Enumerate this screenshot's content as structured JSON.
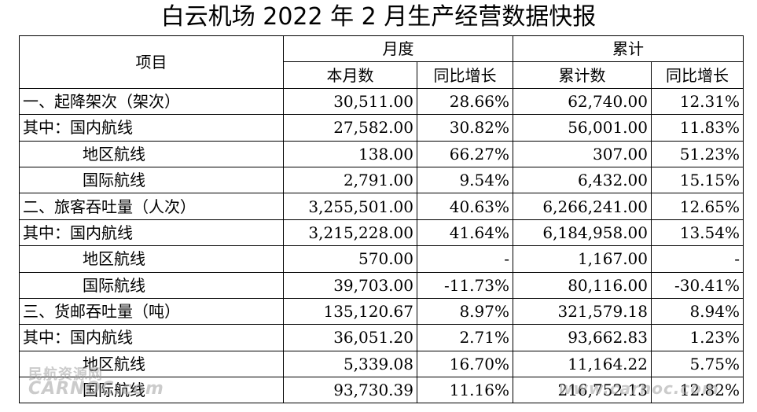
{
  "title": "白云机场 2022 年 2 月生产经营数据快报",
  "header": {
    "item": "项目",
    "monthly": "月度",
    "cumulative": "累计",
    "monthly_count": "本月数",
    "yoy": "同比增长",
    "cumulative_count": "累计数",
    "yoy_cum": "同比增长"
  },
  "rows": [
    {
      "label": "一、起降架次（架次）",
      "month": "30,511.00",
      "month_yoy": "28.66%",
      "cum": "62,740.00",
      "cum_yoy": "12.31%"
    },
    {
      "label": "其中：国内航线",
      "month": "27,582.00",
      "month_yoy": "30.82%",
      "cum": "56,001.00",
      "cum_yoy": "11.83%"
    },
    {
      "label": "地区航线",
      "month": "138.00",
      "month_yoy": "66.27%",
      "cum": "307.00",
      "cum_yoy": "51.23%"
    },
    {
      "label": "国际航线",
      "month": "2,791.00",
      "month_yoy": "9.54%",
      "cum": "6,432.00",
      "cum_yoy": "15.15%"
    },
    {
      "label": "二、旅客吞吐量（人次）",
      "month": "3,255,501.00",
      "month_yoy": "40.63%",
      "cum": "6,266,241.00",
      "cum_yoy": "12.65%"
    },
    {
      "label": "其中：国内航线",
      "month": "3,215,228.00",
      "month_yoy": "41.64%",
      "cum": "6,184,958.00",
      "cum_yoy": "13.54%"
    },
    {
      "label": "地区航线",
      "month": "570.00",
      "month_yoy": "-",
      "cum": "1,167.00",
      "cum_yoy": "-"
    },
    {
      "label": "国际航线",
      "month": "39,703.00",
      "month_yoy": "-11.73%",
      "cum": "80,116.00",
      "cum_yoy": "-30.41%"
    },
    {
      "label": "三、货邮吞吐量（吨）",
      "month": "135,120.67",
      "month_yoy": "8.97%",
      "cum": "321,579.18",
      "cum_yoy": "8.94%"
    },
    {
      "label": "其中：国内航线",
      "month": "36,051.20",
      "month_yoy": "2.71%",
      "cum": "93,662.83",
      "cum_yoy": "1.23%"
    },
    {
      "label": "地区航线",
      "month": "5,339.08",
      "month_yoy": "16.70%",
      "cum": "11,164.22",
      "cum_yoy": "5.75%"
    },
    {
      "label": "国际航线",
      "month": "93,730.39",
      "month_yoy": "11.16%",
      "cum": "216,752.13",
      "cum_yoy": "12.82%"
    }
  ],
  "watermark": {
    "line1": "民航资源网",
    "line2": "CARNOC.com",
    "line3": "www.carnoc.com"
  }
}
